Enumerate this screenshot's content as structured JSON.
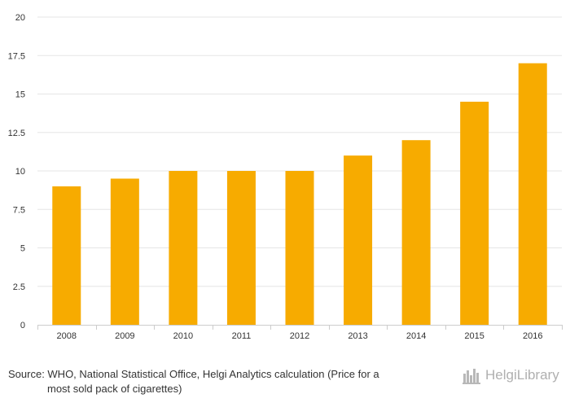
{
  "chart_data": {
    "type": "bar",
    "categories": [
      "2008",
      "2009",
      "2010",
      "2011",
      "2012",
      "2013",
      "2014",
      "2015",
      "2016"
    ],
    "values": [
      9,
      9.5,
      10,
      10,
      10,
      11,
      12,
      14.5,
      17
    ],
    "ylim": [
      0,
      20
    ],
    "yticks": [
      "0",
      "2.5",
      "5",
      "7.5",
      "10",
      "12.5",
      "15",
      "17.5",
      "20"
    ],
    "bar_color": "#f7ab00",
    "grid": true
  },
  "source": {
    "line1": "Source: WHO, National Statistical Office, Helgi Analytics calculation (Price for a",
    "line2": "most sold pack of cigarettes)"
  },
  "logo": {
    "text": "HelgiLibrary",
    "icon": "helgi-skyline-icon"
  }
}
